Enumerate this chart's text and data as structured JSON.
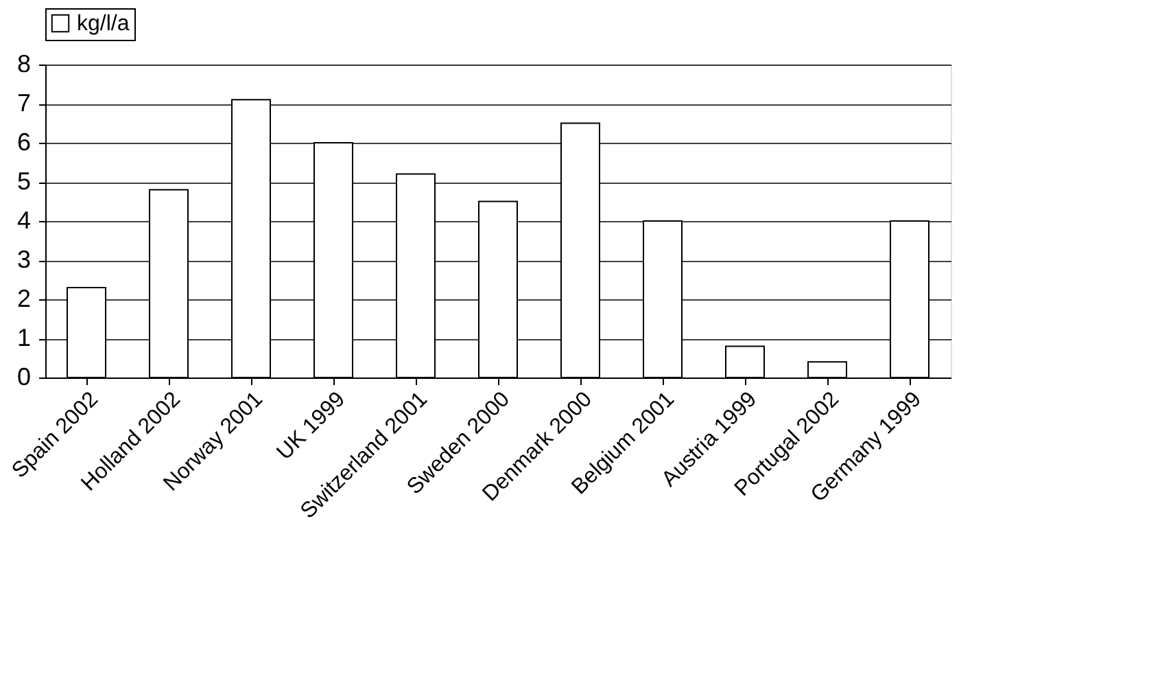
{
  "chart_data": {
    "type": "bar",
    "categories": [
      "Spain 2002",
      "Holland 2002",
      "Norway 2001",
      "UK 1999",
      "Switzerland 2001",
      "Sweden 2000",
      "Denmark 2000",
      "Belgium 2001",
      "Austria 1999",
      "Portugal 2002",
      "Germany 1999"
    ],
    "series": [
      {
        "name": "kg/l/a",
        "color": "#ffffff",
        "values": [
          2.3,
          4.8,
          7.1,
          6.0,
          5.2,
          4.5,
          6.5,
          4.0,
          0.8,
          0.4,
          4.0
        ]
      }
    ],
    "ylim": [
      0,
      8
    ],
    "yticks": [
      0,
      1,
      2,
      3,
      4,
      5,
      6,
      7,
      8
    ],
    "grid": "y",
    "legend": "top"
  }
}
